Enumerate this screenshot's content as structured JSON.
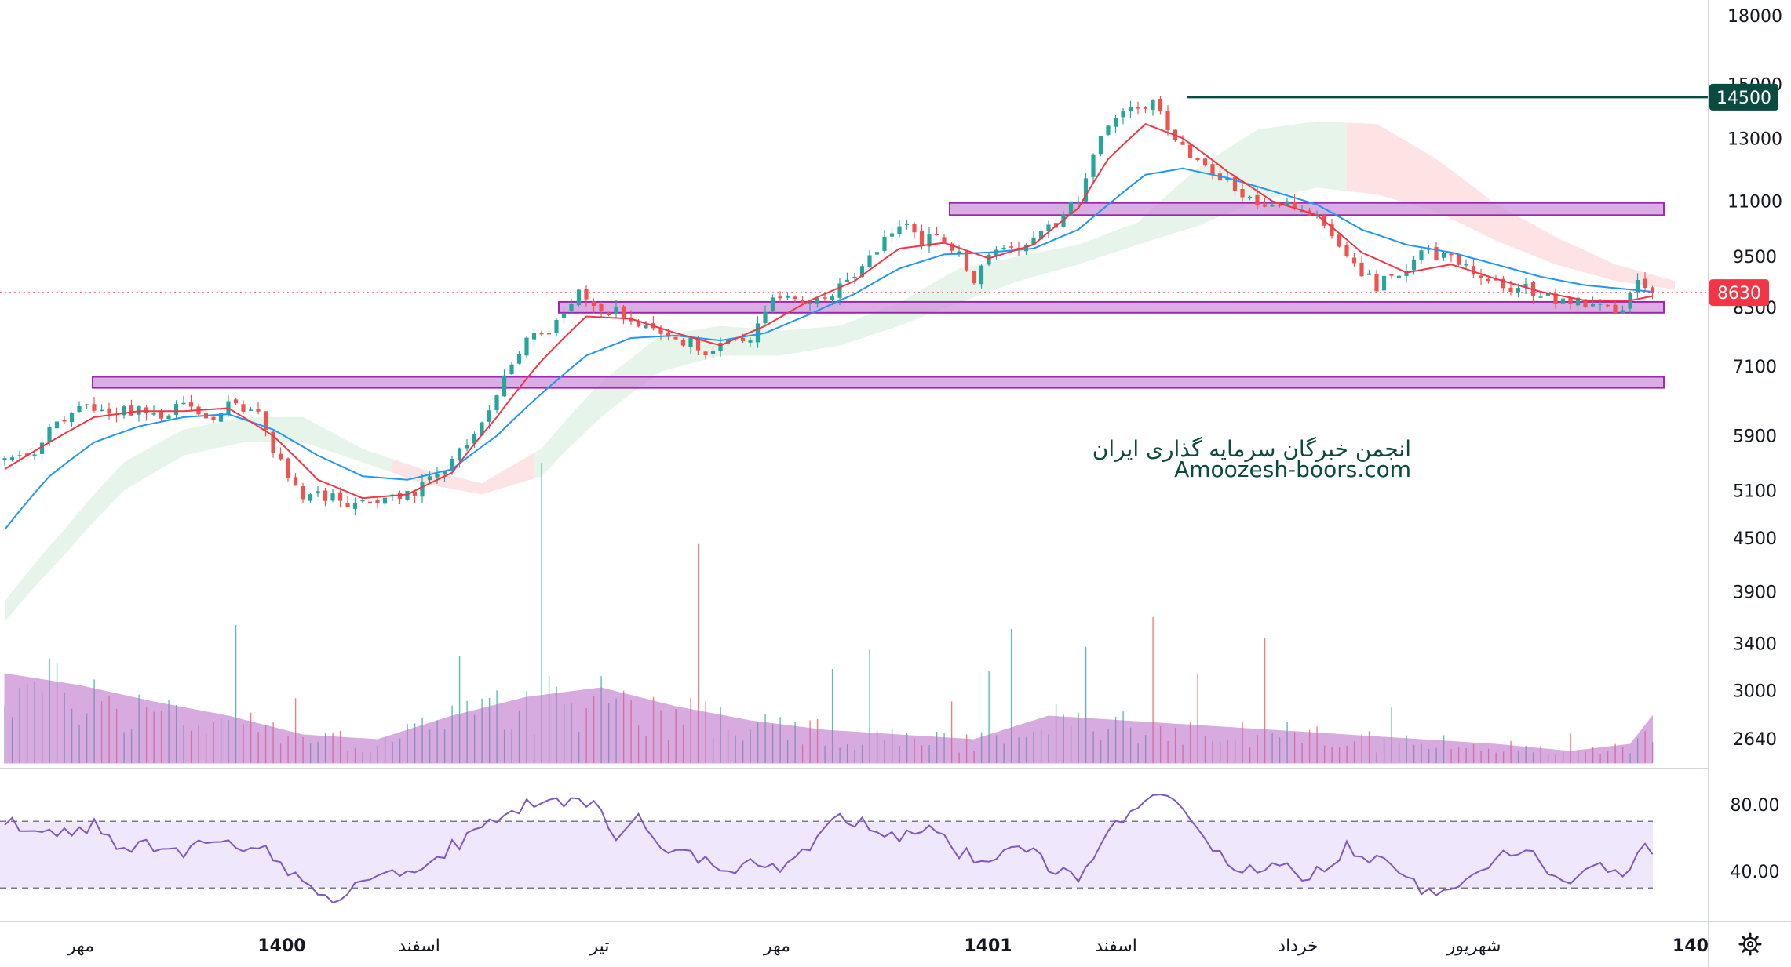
{
  "watermark": {
    "line1": "انجمن خبرگان سرمایه گذاری ایران",
    "line2": "Amoozesh-boors.com"
  },
  "price_tags": {
    "resistance": "14500",
    "last": "8630"
  },
  "settings_icon": "gear-icon",
  "colors": {
    "up": "#26a69a",
    "down": "#ef5350",
    "ema_fast": "#f23645",
    "ema_slow": "#2196f3",
    "zone_fill": "#ce93d8",
    "zone_stroke": "#9c27b0",
    "resistance_line": "#0b4a3f",
    "rsi_line": "#7e57c2",
    "rsi_band": "#efe7fb",
    "volume_ma": "#ba68c8",
    "cloud_bull": "#e6f4ea",
    "cloud_bear": "#fde3e3"
  },
  "chart_data": [
    {
      "type": "candlestick",
      "title": "",
      "scale": "log",
      "y_ticks": [
        18000,
        15000,
        13000,
        11000,
        9500,
        8300,
        7100,
        5900,
        5100,
        4500,
        3900,
        3400,
        3000,
        2640
      ],
      "y_range": [
        2400,
        18500
      ],
      "x_labels": [
        "مهر",
        "1400",
        "اسفند",
        "تیر",
        "مهر",
        "1401",
        "اسفند",
        "خرداد",
        "شهریور",
        "140"
      ],
      "x_labels_bold": [
        false,
        true,
        false,
        false,
        false,
        true,
        false,
        false,
        false,
        true
      ],
      "resistance_level": 14500,
      "last_price": 8630,
      "support_resistance_zones": [
        {
          "from": 10600,
          "to": 10950
        },
        {
          "from": 8180,
          "to": 8420
        },
        {
          "from": 6700,
          "to": 6900
        }
      ],
      "close_path": [
        [
          0,
          5500
        ],
        [
          3,
          5600
        ],
        [
          6,
          5950
        ],
        [
          9,
          6300
        ],
        [
          12,
          6350
        ],
        [
          15,
          6250
        ],
        [
          18,
          6350
        ],
        [
          21,
          6250
        ],
        [
          24,
          6350
        ],
        [
          28,
          6250
        ],
        [
          31,
          6500
        ],
        [
          34,
          6200
        ],
        [
          37,
          5500
        ],
        [
          40,
          5000
        ],
        [
          43,
          5050
        ],
        [
          47,
          4900
        ],
        [
          50,
          5000
        ],
        [
          53,
          5050
        ],
        [
          56,
          5150
        ],
        [
          59,
          5400
        ],
        [
          62,
          5750
        ],
        [
          65,
          6300
        ],
        [
          68,
          7100
        ],
        [
          70,
          7600
        ],
        [
          73,
          7700
        ],
        [
          75,
          8300
        ],
        [
          77,
          8700
        ],
        [
          79,
          8200
        ],
        [
          82,
          8300
        ],
        [
          85,
          7850
        ],
        [
          88,
          7700
        ],
        [
          91,
          7600
        ],
        [
          94,
          7400
        ],
        [
          97,
          7500
        ],
        [
          100,
          7600
        ],
        [
          103,
          8500
        ],
        [
          106,
          8500
        ],
        [
          109,
          8400
        ],
        [
          112,
          8700
        ],
        [
          115,
          9300
        ],
        [
          118,
          10000
        ],
        [
          121,
          10300
        ],
        [
          123,
          9900
        ],
        [
          126,
          9900
        ],
        [
          128,
          9500
        ],
        [
          130,
          9000
        ],
        [
          133,
          9600
        ],
        [
          136,
          9700
        ],
        [
          139,
          10000
        ],
        [
          142,
          10500
        ],
        [
          145,
          11500
        ],
        [
          147,
          13200
        ],
        [
          150,
          14000
        ],
        [
          153,
          14300
        ],
        [
          155,
          14000
        ],
        [
          157,
          12800
        ],
        [
          160,
          12200
        ],
        [
          163,
          11800
        ],
        [
          166,
          11200
        ],
        [
          169,
          10800
        ],
        [
          172,
          11000
        ],
        [
          175,
          10700
        ],
        [
          178,
          10100
        ],
        [
          181,
          9200
        ],
        [
          184,
          8800
        ],
        [
          187,
          9000
        ],
        [
          190,
          9500
        ],
        [
          193,
          9600
        ],
        [
          196,
          9200
        ],
        [
          199,
          8900
        ],
        [
          202,
          8700
        ],
        [
          205,
          8700
        ],
        [
          208,
          8500
        ],
        [
          211,
          8400
        ],
        [
          214,
          8350
        ],
        [
          217,
          8300
        ],
        [
          219,
          8800
        ],
        [
          221,
          8630
        ]
      ],
      "ema_fast_path": [
        [
          0,
          5400
        ],
        [
          6,
          5800
        ],
        [
          12,
          6200
        ],
        [
          18,
          6300
        ],
        [
          24,
          6300
        ],
        [
          30,
          6350
        ],
        [
          36,
          5900
        ],
        [
          42,
          5250
        ],
        [
          48,
          5000
        ],
        [
          54,
          5050
        ],
        [
          60,
          5350
        ],
        [
          66,
          6200
        ],
        [
          72,
          7200
        ],
        [
          78,
          8100
        ],
        [
          84,
          8050
        ],
        [
          90,
          7750
        ],
        [
          96,
          7500
        ],
        [
          102,
          7900
        ],
        [
          108,
          8450
        ],
        [
          114,
          8900
        ],
        [
          120,
          9700
        ],
        [
          126,
          9850
        ],
        [
          132,
          9450
        ],
        [
          138,
          9800
        ],
        [
          144,
          10800
        ],
        [
          148,
          12300
        ],
        [
          153,
          13500
        ],
        [
          158,
          13000
        ],
        [
          164,
          11900
        ],
        [
          170,
          11000
        ],
        [
          176,
          10600
        ],
        [
          182,
          9600
        ],
        [
          188,
          9100
        ],
        [
          194,
          9300
        ],
        [
          200,
          8950
        ],
        [
          206,
          8650
        ],
        [
          212,
          8450
        ],
        [
          218,
          8450
        ],
        [
          221,
          8550
        ]
      ],
      "ema_slow_path": [
        [
          0,
          4600
        ],
        [
          6,
          5300
        ],
        [
          12,
          5800
        ],
        [
          18,
          6050
        ],
        [
          24,
          6200
        ],
        [
          30,
          6250
        ],
        [
          36,
          6000
        ],
        [
          42,
          5600
        ],
        [
          48,
          5300
        ],
        [
          54,
          5250
        ],
        [
          60,
          5400
        ],
        [
          66,
          5900
        ],
        [
          72,
          6600
        ],
        [
          78,
          7300
        ],
        [
          84,
          7650
        ],
        [
          90,
          7700
        ],
        [
          96,
          7600
        ],
        [
          102,
          7750
        ],
        [
          108,
          8150
        ],
        [
          114,
          8600
        ],
        [
          120,
          9200
        ],
        [
          126,
          9550
        ],
        [
          132,
          9600
        ],
        [
          138,
          9700
        ],
        [
          144,
          10200
        ],
        [
          148,
          10900
        ],
        [
          153,
          11800
        ],
        [
          158,
          12000
        ],
        [
          164,
          11700
        ],
        [
          170,
          11300
        ],
        [
          176,
          10900
        ],
        [
          182,
          10200
        ],
        [
          188,
          9800
        ],
        [
          194,
          9600
        ],
        [
          200,
          9300
        ],
        [
          206,
          9000
        ],
        [
          212,
          8800
        ],
        [
          218,
          8700
        ],
        [
          221,
          8650
        ]
      ],
      "cloud_upper_path": [
        [
          0,
          3800
        ],
        [
          8,
          4600
        ],
        [
          16,
          5500
        ],
        [
          24,
          6000
        ],
        [
          32,
          6200
        ],
        [
          40,
          6200
        ],
        [
          48,
          5700
        ],
        [
          56,
          5400
        ],
        [
          64,
          5200
        ],
        [
          72,
          5700
        ],
        [
          80,
          6800
        ],
        [
          88,
          7700
        ],
        [
          96,
          7900
        ],
        [
          104,
          7800
        ],
        [
          112,
          7900
        ],
        [
          120,
          8400
        ],
        [
          128,
          9200
        ],
        [
          136,
          9500
        ],
        [
          144,
          9800
        ],
        [
          152,
          10400
        ],
        [
          160,
          12000
        ],
        [
          168,
          13300
        ],
        [
          176,
          13600
        ],
        [
          184,
          13500
        ],
        [
          192,
          12300
        ],
        [
          200,
          10900
        ],
        [
          208,
          10000
        ],
        [
          216,
          9300
        ],
        [
          224,
          8900
        ]
      ],
      "cloud_lower_path": [
        [
          0,
          3600
        ],
        [
          8,
          4300
        ],
        [
          16,
          5100
        ],
        [
          24,
          5600
        ],
        [
          32,
          5800
        ],
        [
          40,
          5800
        ],
        [
          48,
          5500
        ],
        [
          56,
          5200
        ],
        [
          64,
          5050
        ],
        [
          72,
          5300
        ],
        [
          80,
          6200
        ],
        [
          88,
          7000
        ],
        [
          96,
          7300
        ],
        [
          104,
          7300
        ],
        [
          112,
          7500
        ],
        [
          120,
          7900
        ],
        [
          128,
          8400
        ],
        [
          136,
          8900
        ],
        [
          144,
          9300
        ],
        [
          152,
          9800
        ],
        [
          160,
          10300
        ],
        [
          168,
          11000
        ],
        [
          176,
          11400
        ],
        [
          184,
          11200
        ],
        [
          192,
          10700
        ],
        [
          200,
          9900
        ],
        [
          208,
          9300
        ],
        [
          216,
          8900
        ],
        [
          224,
          8700
        ]
      ],
      "cloud_bear_segments": [
        [
          52,
          70
        ],
        [
          180,
          224
        ]
      ],
      "volume": {
        "type": "bar",
        "relative_ma_path": [
          [
            0,
            0.38
          ],
          [
            10,
            0.33
          ],
          [
            20,
            0.26
          ],
          [
            30,
            0.2
          ],
          [
            40,
            0.12
          ],
          [
            50,
            0.1
          ],
          [
            60,
            0.2
          ],
          [
            70,
            0.28
          ],
          [
            80,
            0.32
          ],
          [
            90,
            0.24
          ],
          [
            100,
            0.18
          ],
          [
            110,
            0.14
          ],
          [
            120,
            0.12
          ],
          [
            130,
            0.1
          ],
          [
            140,
            0.2
          ],
          [
            150,
            0.18
          ],
          [
            160,
            0.16
          ],
          [
            170,
            0.14
          ],
          [
            180,
            0.12
          ],
          [
            190,
            0.1
          ],
          [
            200,
            0.08
          ],
          [
            210,
            0.05
          ],
          [
            218,
            0.08
          ],
          [
            221,
            0.2
          ]
        ]
      }
    },
    {
      "type": "line",
      "title": "",
      "indicator": "RSI",
      "y_ticks": [
        80,
        40
      ],
      "y_range": [
        18,
        100
      ],
      "overbought": 70,
      "oversold": 30,
      "path": [
        [
          0,
          72
        ],
        [
          4,
          62
        ],
        [
          8,
          64
        ],
        [
          12,
          68
        ],
        [
          16,
          52
        ],
        [
          20,
          56
        ],
        [
          24,
          50
        ],
        [
          28,
          60
        ],
        [
          32,
          55
        ],
        [
          36,
          50
        ],
        [
          40,
          34
        ],
        [
          44,
          24
        ],
        [
          48,
          33
        ],
        [
          52,
          38
        ],
        [
          56,
          40
        ],
        [
          60,
          55
        ],
        [
          64,
          65
        ],
        [
          68,
          78
        ],
        [
          72,
          80
        ],
        [
          76,
          82
        ],
        [
          79,
          78
        ],
        [
          82,
          62
        ],
        [
          85,
          72
        ],
        [
          88,
          52
        ],
        [
          92,
          50
        ],
        [
          96,
          40
        ],
        [
          100,
          44
        ],
        [
          104,
          42
        ],
        [
          108,
          56
        ],
        [
          112,
          75
        ],
        [
          116,
          66
        ],
        [
          120,
          62
        ],
        [
          124,
          70
        ],
        [
          128,
          52
        ],
        [
          132,
          44
        ],
        [
          136,
          56
        ],
        [
          140,
          44
        ],
        [
          144,
          36
        ],
        [
          148,
          62
        ],
        [
          152,
          80
        ],
        [
          155,
          88
        ],
        [
          158,
          82
        ],
        [
          161,
          60
        ],
        [
          165,
          40
        ],
        [
          170,
          45
        ],
        [
          175,
          35
        ],
        [
          180,
          55
        ],
        [
          185,
          45
        ],
        [
          190,
          30
        ],
        [
          195,
          28
        ],
        [
          200,
          50
        ],
        [
          205,
          48
        ],
        [
          210,
          32
        ],
        [
          214,
          42
        ],
        [
          217,
          40
        ],
        [
          220,
          55
        ],
        [
          222,
          48
        ]
      ]
    }
  ]
}
